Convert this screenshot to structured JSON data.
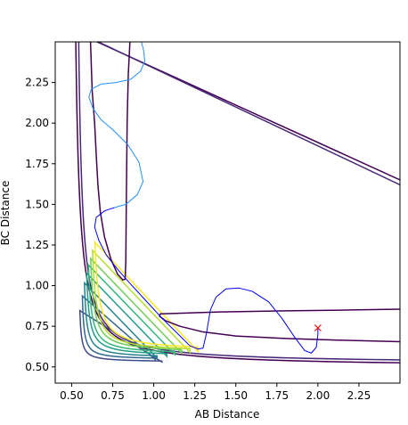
{
  "chart_data": {
    "type": "line",
    "title": "",
    "xlabel": "AB Distance",
    "ylabel": "BC Distance",
    "xlim": [
      0.4,
      2.5
    ],
    "ylim": [
      0.4,
      2.5
    ],
    "xticks": [
      "0.50",
      "0.75",
      "1.00",
      "1.25",
      "1.50",
      "1.75",
      "2.00",
      "2.25"
    ],
    "yticks": [
      "0.50",
      "0.75",
      "1.00",
      "1.25",
      "1.50",
      "1.75",
      "2.00",
      "2.25"
    ],
    "grid": false,
    "legend": "none",
    "contours": {
      "note_colors": "viridis colormap, dark (low) to yellow (high)",
      "levels": [
        {
          "color": "#440154",
          "x_wall": 0.5,
          "y_wall": 0.5,
          "x_asym": 5.0,
          "y_asym": 5.0,
          "r": 0.05
        },
        {
          "color": "#482878",
          "x_wall": 0.52,
          "y_wall": 0.52,
          "x_asym": 4.8,
          "y_asym": 4.8,
          "r": 0.05
        },
        {
          "color": "#3e4a89",
          "x_wall": 0.54,
          "y_wall": 0.53,
          "x_asym": 1.05,
          "y_asym": 0.85,
          "r": 0.14
        },
        {
          "color": "#31688e",
          "x_wall": 0.555,
          "y_wall": 0.545,
          "x_asym": 1.01,
          "y_asym": 0.94,
          "r": 0.15
        },
        {
          "color": "#26828e",
          "x_wall": 0.565,
          "y_wall": 0.555,
          "x_asym": 1.02,
          "y_asym": 1.02,
          "r": 0.17
        },
        {
          "color": "#1f9e89",
          "x_wall": 0.575,
          "y_wall": 0.565,
          "x_asym": 1.08,
          "y_asym": 1.08,
          "r": 0.18
        },
        {
          "color": "#35b779",
          "x_wall": 0.585,
          "y_wall": 0.575,
          "x_asym": 1.13,
          "y_asym": 1.13,
          "r": 0.18
        },
        {
          "color": "#6ece58",
          "x_wall": 0.595,
          "y_wall": 0.585,
          "x_asym": 1.17,
          "y_asym": 1.17,
          "r": 0.19
        },
        {
          "color": "#b5de2b",
          "x_wall": 0.605,
          "y_wall": 0.59,
          "x_asym": 1.22,
          "y_asym": 1.22,
          "r": 0.19
        },
        {
          "color": "#fde725",
          "x_wall": 0.615,
          "y_wall": 0.595,
          "x_asym": 1.27,
          "y_asym": 1.27,
          "r": 0.2
        }
      ],
      "paths": [
        {
          "color": "#440154",
          "points": [
            [
              0.855,
              2.5
            ],
            [
              0.845,
              2.3
            ],
            [
              0.838,
              2.0
            ],
            [
              0.835,
              1.7
            ],
            [
              0.832,
              1.4
            ],
            [
              0.83,
              1.15
            ],
            [
              0.826,
              1.04
            ],
            [
              0.812,
              1.035
            ],
            [
              0.78,
              1.07
            ],
            [
              0.74,
              1.16
            ],
            [
              0.7,
              1.3
            ],
            [
              0.675,
              1.45
            ],
            [
              0.66,
              1.62
            ],
            [
              0.65,
              1.8
            ],
            [
              0.64,
              2.0
            ],
            [
              0.625,
              2.2
            ],
            [
              0.615,
              2.5
            ]
          ]
        },
        {
          "color": "#440154",
          "points": [
            [
              2.5,
              0.855
            ],
            [
              2.2,
              0.85
            ],
            [
              1.8,
              0.845
            ],
            [
              1.4,
              0.838
            ],
            [
              1.15,
              0.83
            ],
            [
              1.04,
              0.826
            ],
            [
              1.035,
              0.812
            ],
            [
              1.07,
              0.785
            ],
            [
              1.16,
              0.75
            ],
            [
              1.3,
              0.715
            ],
            [
              1.5,
              0.69
            ],
            [
              1.8,
              0.675
            ],
            [
              2.1,
              0.665
            ],
            [
              2.5,
              0.655
            ]
          ]
        }
      ]
    },
    "series": [
      {
        "color": "#0000ff",
        "points": [
          [
            2.0,
            0.74
          ],
          [
            2.0,
            0.7
          ],
          [
            1.99,
            0.62
          ],
          [
            1.96,
            0.585
          ],
          [
            1.92,
            0.6
          ],
          [
            1.86,
            0.68
          ],
          [
            1.78,
            0.8
          ],
          [
            1.7,
            0.9
          ],
          [
            1.6,
            0.965
          ],
          [
            1.52,
            0.985
          ],
          [
            1.44,
            0.98
          ],
          [
            1.38,
            0.93
          ],
          [
            1.345,
            0.85
          ],
          [
            1.32,
            0.7
          ],
          [
            1.3,
            0.615
          ],
          [
            1.27,
            0.61
          ],
          [
            1.22,
            0.63
          ],
          [
            1.15,
            0.7
          ],
          [
            1.05,
            0.8
          ],
          [
            0.95,
            0.91
          ],
          [
            0.85,
            1.02
          ],
          [
            0.78,
            1.1
          ],
          [
            0.71,
            1.19
          ],
          [
            0.665,
            1.28
          ],
          [
            0.64,
            1.36
          ],
          [
            0.65,
            1.42
          ],
          [
            0.7,
            1.46
          ],
          [
            0.76,
            1.48
          ]
        ]
      },
      {
        "color": "#1e90ff",
        "points": [
          [
            0.76,
            1.48
          ],
          [
            0.83,
            1.5
          ],
          [
            0.9,
            1.56
          ],
          [
            0.935,
            1.64
          ],
          [
            0.91,
            1.76
          ],
          [
            0.84,
            1.87
          ],
          [
            0.75,
            1.96
          ],
          [
            0.68,
            2.02
          ],
          [
            0.63,
            2.09
          ],
          [
            0.605,
            2.16
          ],
          [
            0.62,
            2.21
          ],
          [
            0.68,
            2.24
          ],
          [
            0.77,
            2.25
          ],
          [
            0.86,
            2.27
          ],
          [
            0.92,
            2.32
          ],
          [
            0.945,
            2.38
          ],
          [
            0.94,
            2.44
          ],
          [
            0.925,
            2.5
          ]
        ]
      }
    ],
    "marker": {
      "x": 2.0,
      "y": 0.74,
      "symbol": "x",
      "color": "#ff0000"
    }
  }
}
